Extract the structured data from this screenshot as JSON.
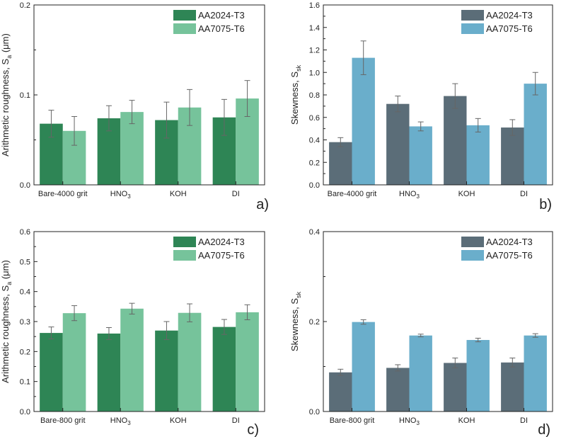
{
  "figure": {
    "description_labels": [
      "a)",
      "b)",
      "c)",
      "d)"
    ]
  },
  "chart_data": [
    {
      "id": "a",
      "type": "bar",
      "panel_label": "a)",
      "ylabel_main": "Arithmetic roughness, S",
      "ylabel_sub": "a",
      "ylabel_tail": " (μm)",
      "categories": [
        {
          "main": "Bare-4000 grit",
          "sub": ""
        },
        {
          "main": "HNO",
          "sub": "3"
        },
        {
          "main": "KOH",
          "sub": ""
        },
        {
          "main": "DI",
          "sub": ""
        }
      ],
      "ylim": [
        0,
        0.2
      ],
      "yticks": [
        0.0,
        0.1,
        0.2
      ],
      "ytick_labels": [
        "0.0",
        "0.1",
        "0.2"
      ],
      "series": [
        {
          "name": "AA2024-T3",
          "color": "#2e8555",
          "values": [
            0.068,
            0.074,
            0.072,
            0.075
          ],
          "errors": [
            0.015,
            0.014,
            0.02,
            0.02
          ]
        },
        {
          "name": "AA7075-T6",
          "color": "#76c39b",
          "values": [
            0.06,
            0.081,
            0.086,
            0.096
          ],
          "errors": [
            0.016,
            0.013,
            0.02,
            0.02
          ]
        }
      ],
      "legend": "top-right"
    },
    {
      "id": "b",
      "type": "bar",
      "panel_label": "b)",
      "ylabel_main": "Skewness, S",
      "ylabel_sub": "sk",
      "ylabel_tail": "",
      "categories": [
        {
          "main": "Bare-4000 grit",
          "sub": ""
        },
        {
          "main": "HNO",
          "sub": "3"
        },
        {
          "main": "KOH",
          "sub": ""
        },
        {
          "main": "DI",
          "sub": ""
        }
      ],
      "ylim": [
        0,
        1.6
      ],
      "yticks": [
        0.0,
        0.2,
        0.4,
        0.6,
        0.8,
        1.0,
        1.2,
        1.4,
        1.6
      ],
      "ytick_labels": [
        "0.0",
        "0.2",
        "0.4",
        "0.6",
        "0.8",
        "1.0",
        "1.2",
        "1.4",
        "1.6"
      ],
      "series": [
        {
          "name": "AA2024-T3",
          "color": "#5b6d78",
          "values": [
            0.38,
            0.72,
            0.79,
            0.51
          ],
          "errors": [
            0.04,
            0.07,
            0.11,
            0.07
          ]
        },
        {
          "name": "AA7075-T6",
          "color": "#6aaecb",
          "values": [
            1.13,
            0.52,
            0.53,
            0.9
          ],
          "errors": [
            0.15,
            0.04,
            0.06,
            0.1
          ]
        }
      ],
      "legend": "top-right"
    },
    {
      "id": "c",
      "type": "bar",
      "panel_label": "c)",
      "ylabel_main": "Arithmetic roughness, S",
      "ylabel_sub": "a",
      "ylabel_tail": " (μm)",
      "categories": [
        {
          "main": "Bare-800 grit",
          "sub": ""
        },
        {
          "main": "HNO",
          "sub": "3"
        },
        {
          "main": "KOH",
          "sub": ""
        },
        {
          "main": "DI",
          "sub": ""
        }
      ],
      "ylim": [
        0,
        0.6
      ],
      "yticks": [
        0.0,
        0.1,
        0.2,
        0.3,
        0.4,
        0.5,
        0.6
      ],
      "ytick_labels": [
        "0.0",
        "0.1",
        "0.2",
        "0.3",
        "0.4",
        "0.5",
        "0.6"
      ],
      "series": [
        {
          "name": "AA2024-T3",
          "color": "#2e8555",
          "values": [
            0.262,
            0.26,
            0.27,
            0.282
          ],
          "errors": [
            0.02,
            0.02,
            0.03,
            0.025
          ]
        },
        {
          "name": "AA7075-T6",
          "color": "#76c39b",
          "values": [
            0.328,
            0.343,
            0.329,
            0.331
          ],
          "errors": [
            0.025,
            0.018,
            0.03,
            0.025
          ]
        }
      ],
      "legend": "top-right"
    },
    {
      "id": "d",
      "type": "bar",
      "panel_label": "d)",
      "ylabel_main": "Skewness, S",
      "ylabel_sub": "sk",
      "ylabel_tail": "",
      "categories": [
        {
          "main": "Bare-800 grit",
          "sub": ""
        },
        {
          "main": "HNO",
          "sub": "3"
        },
        {
          "main": "KOH",
          "sub": ""
        },
        {
          "main": "DI",
          "sub": ""
        }
      ],
      "ylim": [
        0,
        0.4
      ],
      "yticks": [
        0.0,
        0.2,
        0.4
      ],
      "ytick_labels": [
        "0.0",
        "0.2",
        "0.4"
      ],
      "series": [
        {
          "name": "AA2024-T3",
          "color": "#5b6d78",
          "values": [
            0.087,
            0.097,
            0.108,
            0.109
          ],
          "errors": [
            0.007,
            0.007,
            0.011,
            0.01
          ]
        },
        {
          "name": "AA7075-T6",
          "color": "#6aaecb",
          "values": [
            0.199,
            0.169,
            0.159,
            0.169
          ],
          "errors": [
            0.005,
            0.003,
            0.004,
            0.004
          ]
        }
      ],
      "legend": "top-right"
    }
  ]
}
